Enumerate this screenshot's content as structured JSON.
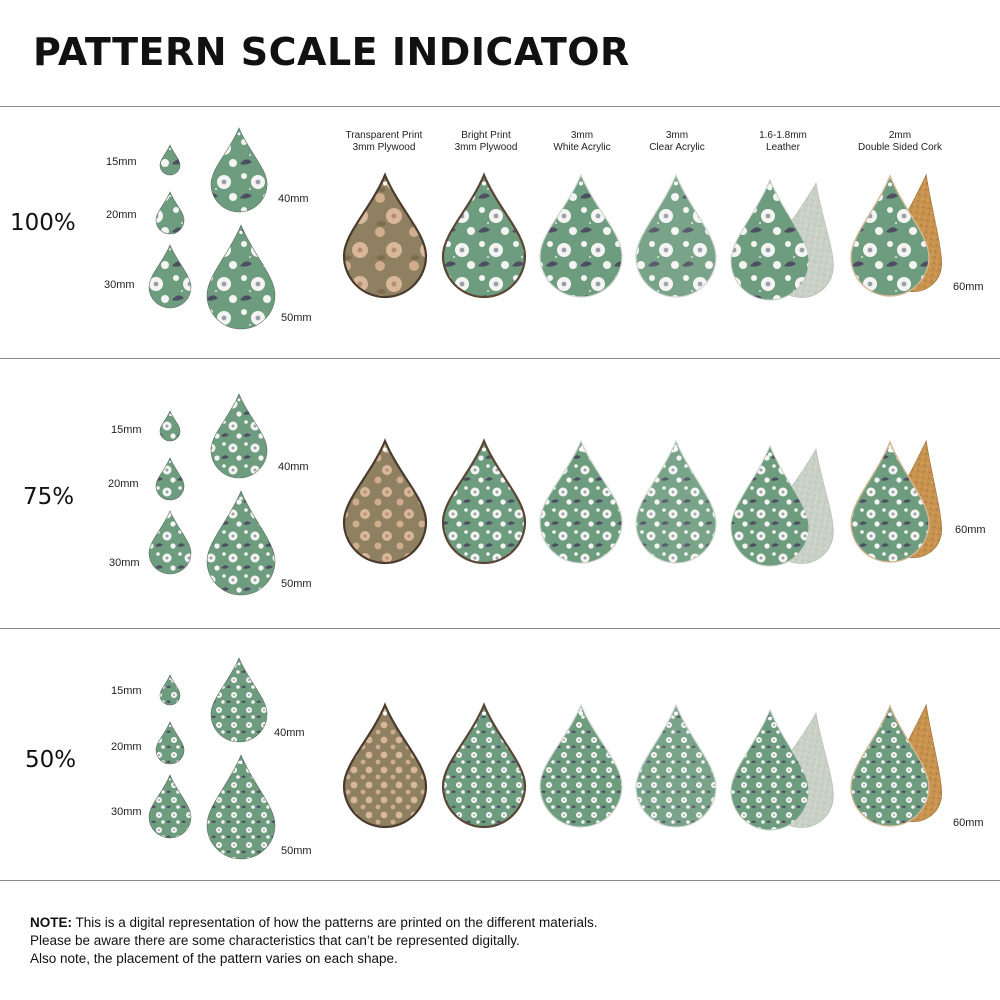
{
  "title": "PATTERN SCALE INDICATOR",
  "materials": [
    {
      "line1": "Transparent Print",
      "line2": "3mm Plywood"
    },
    {
      "line1": "Bright Print",
      "line2": "3mm Plywood"
    },
    {
      "line1": "3mm",
      "line2": "White Acrylic"
    },
    {
      "line1": "3mm",
      "line2": "Clear Acrylic"
    },
    {
      "line1": "1.6-1.8mm",
      "line2": "Leather"
    },
    {
      "line1": "2mm",
      "line2": "Double Sided Cork"
    }
  ],
  "rows": [
    {
      "scale": "100%",
      "s15": "15mm",
      "s20": "20mm",
      "s30": "30mm",
      "s40": "40mm",
      "s50": "50mm",
      "s60": "60mm"
    },
    {
      "scale": "75%",
      "s15": "15mm",
      "s20": "20mm",
      "s30": "30mm",
      "s40": "40mm",
      "s50": "50mm",
      "s60": "60mm"
    },
    {
      "scale": "50%",
      "s15": "15mm",
      "s20": "20mm",
      "s30": "30mm",
      "s40": "40mm",
      "s50": "50mm",
      "s60": "60mm"
    }
  ],
  "note": {
    "label": "NOTE:",
    "line1": " This is a digital representation of how the patterns are printed on the different materials.",
    "line2": "Please be aware there are some characteristics that can’t be represented digitally.",
    "line3": "Also note, the placement of the pattern varies on each shape."
  },
  "colors": {
    "sage": "#6e9c7f",
    "wood": "#b89a7e",
    "cork": "#c8924f",
    "suede": "#c9d0c6",
    "petal": "#f4f5f2",
    "leaf": "#4e4e63"
  }
}
